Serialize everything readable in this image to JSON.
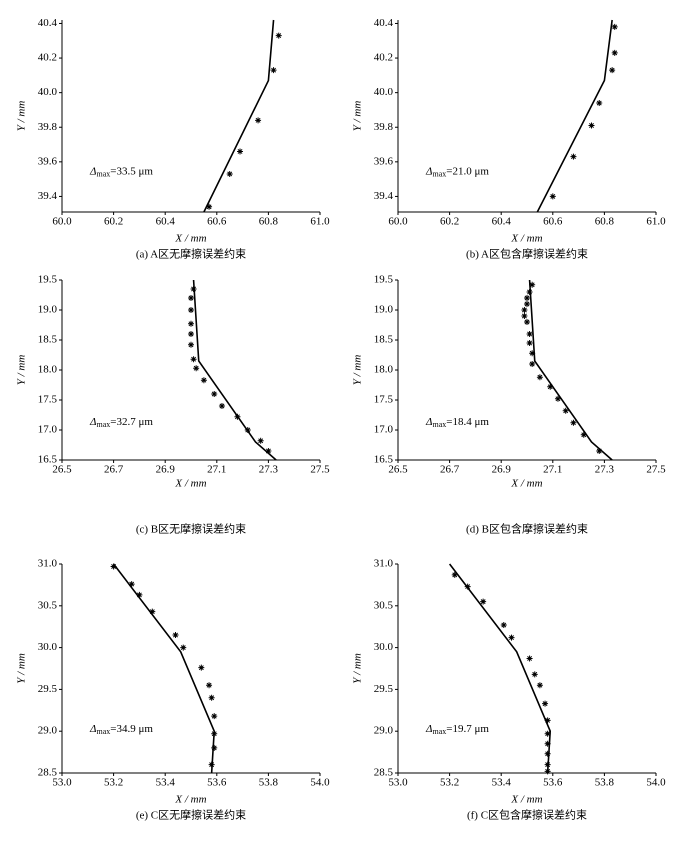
{
  "chart_data": [
    {
      "type": "line",
      "caption": "(a) A区无摩擦误差约束",
      "xlabel": "X / mm",
      "ylabel": "Y / mm",
      "annotation": {
        "symbol": "Δ",
        "subscript": "max",
        "text": "=33.5 μm"
      },
      "xlim": [
        60.0,
        61.0
      ],
      "xticks": [
        {
          "value": 60,
          "label": "60.0"
        },
        60.2,
        60.4,
        60.6,
        60.8,
        {
          "value": 61,
          "label": "61.0"
        }
      ],
      "ylim": [
        39.31,
        40.42
      ],
      "yticks": [
        39.4,
        39.6,
        39.8,
        {
          "value": 40,
          "label": "40.0"
        },
        40.2,
        40.4
      ],
      "series": [
        {
          "type": "line",
          "color": "#000000",
          "x": [
            60.55,
            60.8,
            60.82
          ],
          "values": [
            39.31,
            40.07,
            40.42
          ]
        },
        {
          "type": "scatter",
          "color": "#000000",
          "x": [
            60.84,
            60.82,
            60.76,
            60.69,
            60.65,
            60.57
          ],
          "values": [
            40.33,
            40.13,
            39.84,
            39.66,
            39.53,
            39.34
          ]
        }
      ]
    },
    {
      "type": "line",
      "caption": "(b) A区包含摩擦误差约束",
      "xlabel": "X / mm",
      "ylabel": "Y / mm",
      "annotation": {
        "symbol": "Δ",
        "subscript": "max",
        "text": "=21.0 μm"
      },
      "xlim": [
        60.0,
        61.0
      ],
      "xticks": [
        {
          "value": 60,
          "label": "60.0"
        },
        60.2,
        60.4,
        60.6,
        60.8,
        {
          "value": 61,
          "label": "61.0"
        }
      ],
      "ylim": [
        39.31,
        40.42
      ],
      "yticks": [
        39.4,
        39.6,
        39.8,
        {
          "value": 40,
          "label": "40.0"
        },
        40.2,
        40.4
      ],
      "series": [
        {
          "type": "line",
          "color": "#000000",
          "x": [
            60.54,
            60.8,
            60.83
          ],
          "values": [
            39.31,
            40.07,
            40.42
          ]
        },
        {
          "type": "scatter",
          "color": "#000000",
          "x": [
            60.84,
            60.84,
            60.83,
            60.78,
            60.75,
            60.68,
            60.6
          ],
          "values": [
            40.38,
            40.23,
            40.13,
            39.94,
            39.81,
            39.63,
            39.4
          ]
        }
      ]
    },
    {
      "type": "line",
      "caption": "(c) B区无摩擦误差约束",
      "xlabel": "X / mm",
      "ylabel": "Y / mm",
      "annotation": {
        "symbol": "Δ",
        "subscript": "max",
        "text": "=32.7 μm"
      },
      "xlim": [
        26.5,
        27.5
      ],
      "xticks": [
        26.5,
        26.7,
        26.9,
        27.1,
        27.3,
        27.5
      ],
      "ylim": [
        16.5,
        19.5
      ],
      "yticks": [
        16.5,
        {
          "value": 17,
          "label": "17.0"
        },
        17.5,
        {
          "value": 18,
          "label": "18.0"
        },
        18.5,
        {
          "value": 19,
          "label": "19.0"
        },
        19.5
      ],
      "series": [
        {
          "type": "line",
          "color": "#000000",
          "x": [
            27.01,
            27.03,
            27.25,
            27.33
          ],
          "values": [
            19.5,
            18.15,
            16.8,
            16.5
          ]
        },
        {
          "type": "scatter",
          "color": "#000000",
          "x": [
            27.01,
            27.0,
            27.0,
            27.0,
            27.0,
            27.0,
            27.01,
            27.02,
            27.05,
            27.09,
            27.12,
            27.18,
            27.22,
            27.27,
            27.3
          ],
          "values": [
            19.35,
            19.2,
            19.0,
            18.77,
            18.6,
            18.42,
            18.18,
            18.03,
            17.83,
            17.6,
            17.4,
            17.22,
            17.0,
            16.82,
            16.65
          ]
        }
      ]
    },
    {
      "type": "line",
      "caption": "(d) B区包含摩擦误差约束",
      "xlabel": "X / mm",
      "ylabel": "Y / mm",
      "annotation": {
        "symbol": "Δ",
        "subscript": "max",
        "text": "=18.4 μm"
      },
      "xlim": [
        26.5,
        27.5
      ],
      "xticks": [
        26.5,
        26.7,
        26.9,
        27.1,
        27.3,
        27.5
      ],
      "ylim": [
        16.5,
        19.5
      ],
      "yticks": [
        16.5,
        {
          "value": 17,
          "label": "17.0"
        },
        17.5,
        {
          "value": 18,
          "label": "18.0"
        },
        18.5,
        {
          "value": 19,
          "label": "19.0"
        },
        19.5
      ],
      "series": [
        {
          "type": "line",
          "color": "#000000",
          "x": [
            27.01,
            27.03,
            27.25,
            27.33
          ],
          "values": [
            19.5,
            18.15,
            16.8,
            16.5
          ]
        },
        {
          "type": "scatter",
          "color": "#000000",
          "x": [
            27.02,
            27.01,
            27.0,
            27.0,
            26.99,
            26.99,
            27.0,
            27.01,
            27.01,
            27.02,
            27.02,
            27.05,
            27.09,
            27.12,
            27.15,
            27.18,
            27.22,
            27.28
          ],
          "values": [
            19.42,
            19.3,
            19.2,
            19.1,
            19.0,
            18.9,
            18.8,
            18.6,
            18.45,
            18.28,
            18.1,
            17.88,
            17.72,
            17.52,
            17.32,
            17.12,
            16.92,
            16.65
          ]
        }
      ]
    },
    {
      "type": "line",
      "caption": "(e) C区无摩擦误差约束",
      "xlabel": "X / mm",
      "ylabel": "Y / mm",
      "annotation": {
        "symbol": "Δ",
        "subscript": "max",
        "text": "=34.9 μm"
      },
      "xlim": [
        53.0,
        54.0
      ],
      "xticks": [
        {
          "value": 53,
          "label": "53.0"
        },
        53.2,
        53.4,
        53.6,
        53.8,
        {
          "value": 54,
          "label": "54.0"
        }
      ],
      "ylim": [
        28.5,
        31.0
      ],
      "yticks": [
        28.5,
        {
          "value": 29,
          "label": "29.0"
        },
        29.5,
        {
          "value": 30,
          "label": "30.0"
        },
        30.5,
        {
          "value": 31,
          "label": "31.0"
        }
      ],
      "series": [
        {
          "type": "line",
          "color": "#000000",
          "x": [
            53.2,
            53.46,
            53.59,
            53.58
          ],
          "values": [
            31.0,
            29.95,
            29.0,
            28.5
          ]
        },
        {
          "type": "scatter",
          "color": "#000000",
          "x": [
            53.2,
            53.27,
            53.3,
            53.35,
            53.44,
            53.47,
            53.54,
            53.57,
            53.58,
            53.59,
            53.59,
            53.59,
            53.58
          ],
          "values": [
            30.97,
            30.76,
            30.63,
            30.43,
            30.15,
            30.0,
            29.76,
            29.55,
            29.4,
            29.18,
            28.97,
            28.8,
            28.6
          ]
        }
      ]
    },
    {
      "type": "line",
      "caption": "(f) C区包含摩擦误差约束",
      "xlabel": "X / mm",
      "ylabel": "Y / mm",
      "annotation": {
        "symbol": "Δ",
        "subscript": "max",
        "text": "=19.7 μm"
      },
      "xlim": [
        53.0,
        54.0
      ],
      "xticks": [
        {
          "value": 53,
          "label": "53.0"
        },
        53.2,
        53.4,
        53.6,
        53.8,
        {
          "value": 54,
          "label": "54.0"
        }
      ],
      "ylim": [
        28.5,
        31.0
      ],
      "yticks": [
        28.5,
        {
          "value": 29,
          "label": "29.0"
        },
        29.5,
        {
          "value": 30,
          "label": "30.0"
        },
        30.5,
        {
          "value": 31,
          "label": "31.0"
        }
      ],
      "series": [
        {
          "type": "line",
          "color": "#000000",
          "x": [
            53.2,
            53.46,
            53.59,
            53.58
          ],
          "values": [
            31.0,
            29.95,
            29.0,
            28.5
          ]
        },
        {
          "type": "scatter",
          "color": "#000000",
          "x": [
            53.22,
            53.27,
            53.33,
            53.41,
            53.44,
            53.51,
            53.53,
            53.55,
            53.57,
            53.58,
            53.58,
            53.58,
            53.58,
            53.58,
            53.58
          ],
          "values": [
            30.87,
            30.73,
            30.55,
            30.27,
            30.12,
            29.87,
            29.68,
            29.55,
            29.33,
            29.13,
            28.97,
            28.85,
            28.73,
            28.6,
            28.52
          ]
        }
      ]
    }
  ]
}
